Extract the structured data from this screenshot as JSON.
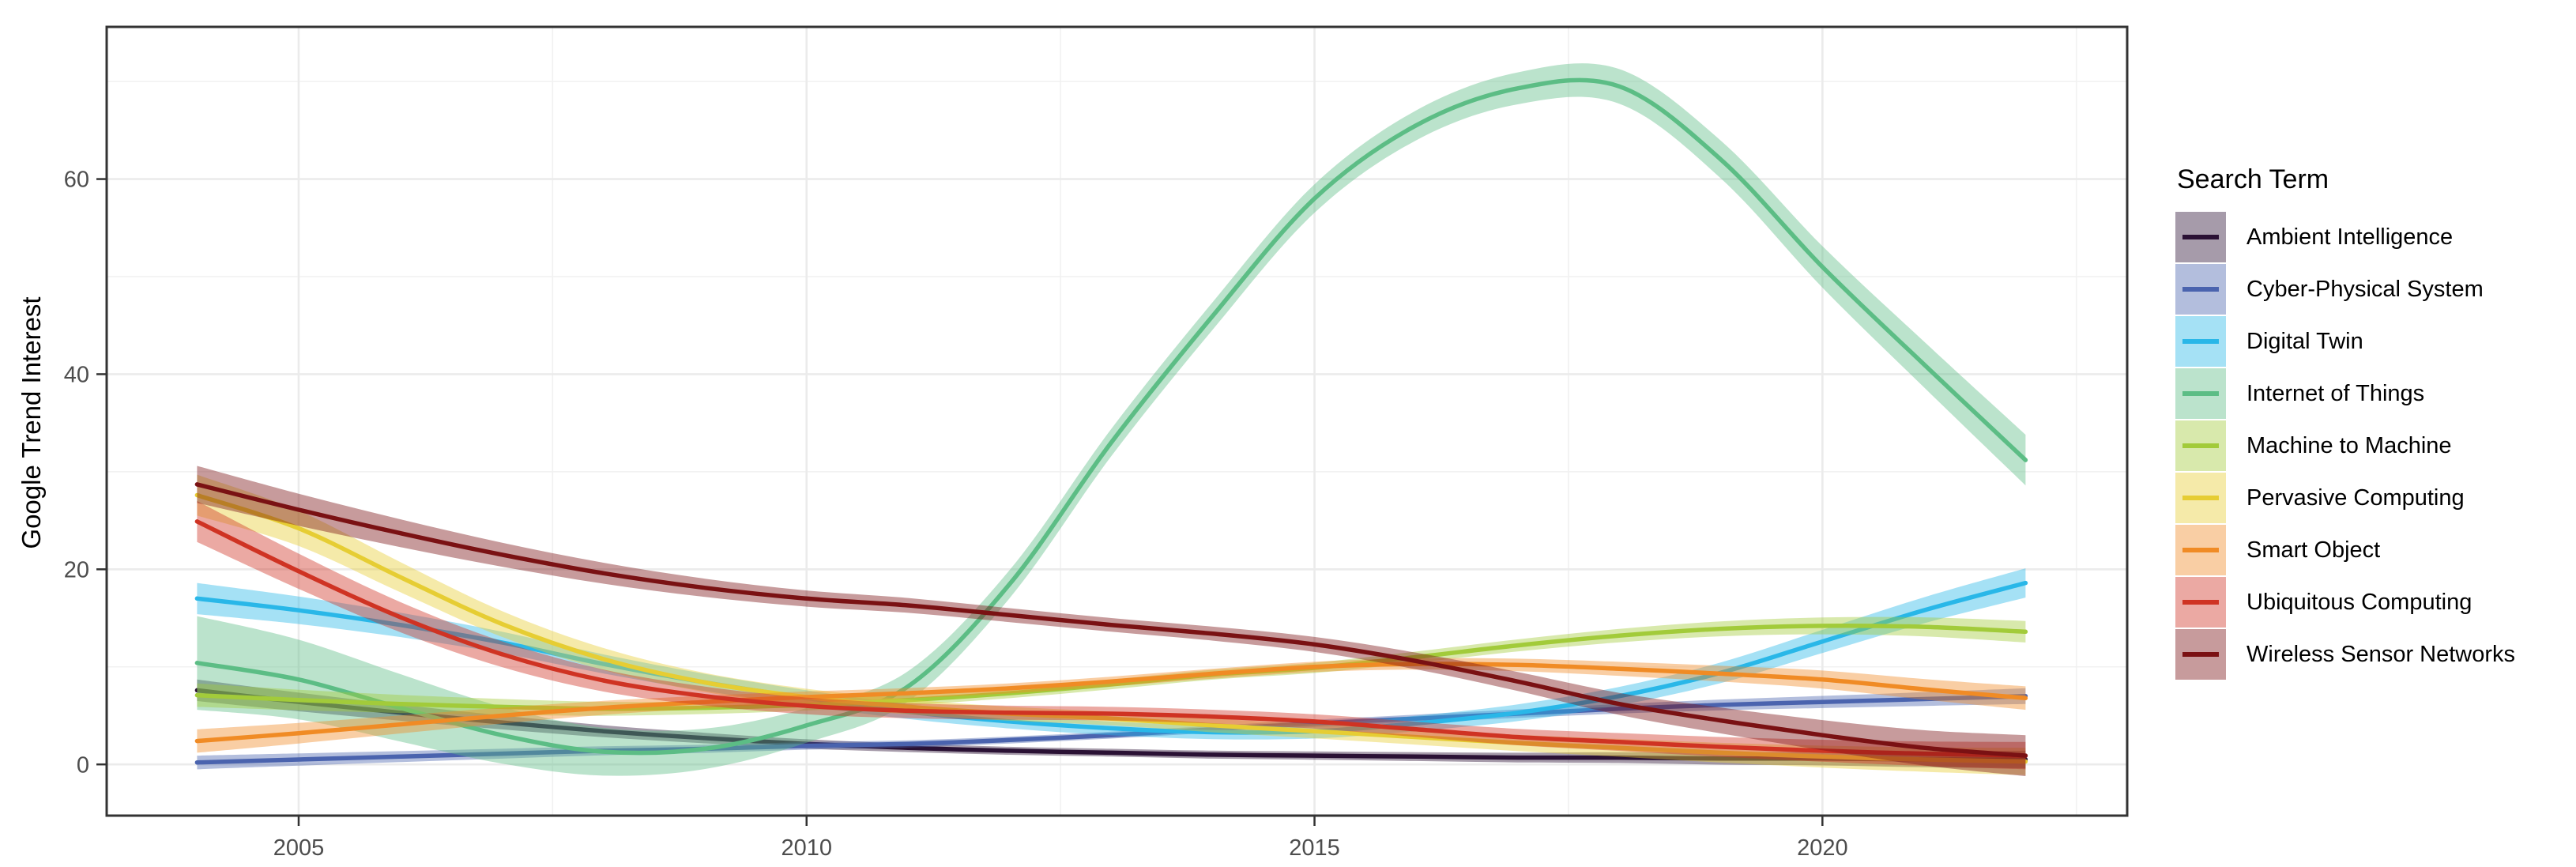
{
  "chart_data": {
    "type": "line",
    "title": "",
    "ylabel": "Google Trend Interest",
    "xlabel": "",
    "legend_title": "Search Term",
    "grid": true,
    "legend_position": "right",
    "x": [
      2004,
      2005,
      2006,
      2007,
      2008,
      2009,
      2010,
      2011,
      2012,
      2013,
      2014,
      2015,
      2016,
      2017,
      2018,
      2019,
      2020,
      2021,
      2022
    ],
    "x_ticks": [
      2005,
      2010,
      2015,
      2020
    ],
    "x_tick_labels": [
      "2005",
      "2010",
      "2015",
      "2020"
    ],
    "x_minor_ticks": [
      2007.5,
      2012.5,
      2017.5,
      2022.5
    ],
    "y_ticks": [
      0,
      20,
      40,
      60
    ],
    "y_tick_labels": [
      "0",
      "20",
      "40",
      "60"
    ],
    "y_minor_ticks": [
      10,
      30,
      50,
      70
    ],
    "xlim": [
      2003.11,
      2023.0
    ],
    "ylim": [
      -5.25,
      75.6
    ],
    "ribbon_opacity": 0.42,
    "series": [
      {
        "name": "Ambient Intelligence",
        "color": "#2a1134",
        "values": [
          7.6,
          6.4,
          5.3,
          4.3,
          3.4,
          2.7,
          2.1,
          1.7,
          1.4,
          1.2,
          1.0,
          0.9,
          0.8,
          0.7,
          0.7,
          0.6,
          0.6,
          0.5,
          0.5
        ],
        "ci_halfwidth": [
          1.1,
          0.4,
          0.9
        ]
      },
      {
        "name": "Cyber-Physical System",
        "color": "#4a63ae",
        "values": [
          0.2,
          0.5,
          0.8,
          1.1,
          1.4,
          1.6,
          1.9,
          2.1,
          2.5,
          3.0,
          3.6,
          4.2,
          4.7,
          5.2,
          5.7,
          6.1,
          6.4,
          6.7,
          7.0
        ],
        "ci_halfwidth": [
          0.7,
          0.35,
          0.8
        ]
      },
      {
        "name": "Digital Twin",
        "color": "#29b7e8",
        "values": [
          17.0,
          15.8,
          14.3,
          12.5,
          10.3,
          8.4,
          6.8,
          5.4,
          4.4,
          3.7,
          3.3,
          3.4,
          4.2,
          5.3,
          7.0,
          9.4,
          12.6,
          15.8,
          18.6
        ],
        "ci_halfwidth": [
          1.6,
          0.7,
          1.5
        ]
      },
      {
        "name": "Internet of Things",
        "color": "#5cbd85",
        "values": [
          10.4,
          8.7,
          5.8,
          3.0,
          1.3,
          1.6,
          4.0,
          8.0,
          18.5,
          33.0,
          46.0,
          58.0,
          65.5,
          69.3,
          69.5,
          62.0,
          51.0,
          41.0,
          31.2
        ],
        "ci_halfwidth": [
          4.8,
          1.4,
          2.6
        ]
      },
      {
        "name": "Machine to Machine",
        "color": "#a2cb3a",
        "values": [
          7.1,
          6.6,
          6.2,
          5.9,
          5.7,
          5.8,
          6.1,
          6.6,
          7.3,
          8.2,
          9.2,
          9.9,
          11.0,
          12.2,
          13.2,
          13.9,
          14.2,
          14.1,
          13.6
        ],
        "ci_halfwidth": [
          1.2,
          0.5,
          1.1
        ]
      },
      {
        "name": "Pervasive Computing",
        "color": "#e6cd33",
        "values": [
          27.6,
          24.2,
          19.2,
          14.4,
          10.8,
          8.4,
          6.9,
          5.9,
          5.2,
          4.7,
          4.0,
          3.4,
          2.8,
          2.2,
          1.7,
          1.2,
          0.8,
          0.5,
          0.3
        ],
        "ci_halfwidth": [
          2.1,
          0.7,
          1.4
        ]
      },
      {
        "name": "Smart Object",
        "color": "#f08b25",
        "values": [
          2.4,
          3.2,
          4.1,
          5.0,
          5.8,
          6.4,
          6.9,
          7.3,
          7.8,
          8.5,
          9.3,
          10.0,
          10.3,
          10.2,
          9.8,
          9.3,
          8.7,
          7.7,
          6.8
        ],
        "ci_halfwidth": [
          1.2,
          0.5,
          1.2
        ]
      },
      {
        "name": "Ubiquitous Computing",
        "color": "#cf3323",
        "values": [
          24.9,
          19.8,
          15.1,
          11.3,
          8.6,
          7.0,
          6.0,
          5.5,
          5.3,
          5.2,
          4.9,
          4.4,
          3.6,
          2.8,
          2.3,
          1.8,
          1.4,
          1.1,
          0.9
        ],
        "ci_halfwidth": [
          2.1,
          0.7,
          1.4
        ]
      },
      {
        "name": "Wireless Sensor Networks",
        "color": "#7a1113",
        "values": [
          28.7,
          26.1,
          23.7,
          21.5,
          19.6,
          18.1,
          17.0,
          16.3,
          15.3,
          14.3,
          13.4,
          12.3,
          10.6,
          8.5,
          6.2,
          4.5,
          3.0,
          1.7,
          0.9
        ],
        "ci_halfwidth": [
          1.9,
          0.7,
          2.1
        ]
      }
    ],
    "style_colors": {
      "panel_border": "#333333",
      "tick_label": "#4d4d4d",
      "grid_major": "#ebebeb",
      "grid_minor": "#f1f1f1",
      "background": "#ffffff"
    }
  }
}
